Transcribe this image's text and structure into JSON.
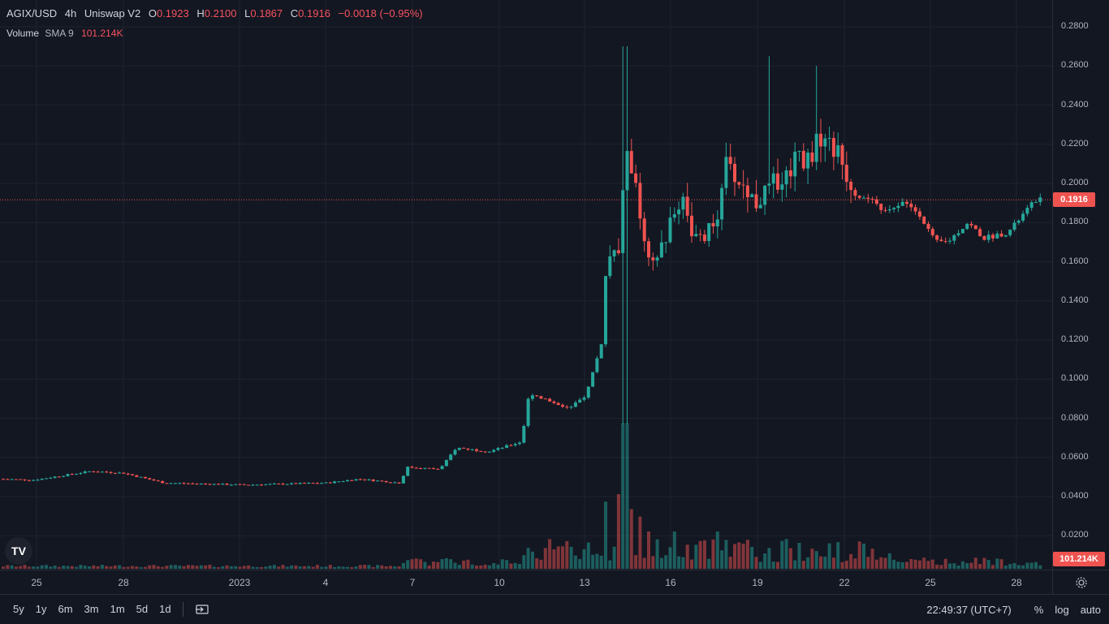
{
  "legend": {
    "symbol": "AGIX/USD",
    "interval": "4h",
    "exchange": "Uniswap V2",
    "o_label": "O",
    "o_value": "0.1923",
    "h_label": "H",
    "h_value": "0.2100",
    "l_label": "L",
    "l_value": "0.1867",
    "c_label": "C",
    "c_value": "0.1916",
    "change": "−0.0018 (−0.95%)"
  },
  "volume_legend": {
    "label": "Volume",
    "sma": "SMA 9",
    "value": "101.214K"
  },
  "price_tags": {
    "last_price": "0.1916",
    "volume": "101.214K"
  },
  "colors": {
    "up": "#26a69a",
    "down": "#ef5350",
    "background": "#131722"
  },
  "chart_data": {
    "type": "candlestick",
    "title": "",
    "ylim": [
      0.0,
      0.29
    ],
    "y_ticks": [
      "0.2800",
      "0.2600",
      "0.2400",
      "0.2200",
      "0.2000",
      "0.1800",
      "0.1600",
      "0.1400",
      "0.1200",
      "0.1000",
      "0.0800",
      "0.0600",
      "0.0400",
      "0.0200"
    ],
    "x_ticks": [
      "25",
      "28",
      "2023",
      "4",
      "7",
      "10",
      "13",
      "16",
      "19",
      "22",
      "25",
      "28"
    ],
    "last_close": 0.1916,
    "path_keypoints": [
      [
        0,
        0.049
      ],
      [
        40,
        0.0485
      ],
      [
        110,
        0.053
      ],
      [
        150,
        0.052
      ],
      [
        200,
        0.047
      ],
      [
        300,
        0.046
      ],
      [
        400,
        0.047
      ],
      [
        440,
        0.049
      ],
      [
        490,
        0.047
      ],
      [
        500,
        0.055
      ],
      [
        540,
        0.054
      ],
      [
        560,
        0.065
      ],
      [
        600,
        0.063
      ],
      [
        640,
        0.068
      ],
      [
        650,
        0.093
      ],
      [
        680,
        0.088
      ],
      [
        700,
        0.085
      ],
      [
        720,
        0.092
      ],
      [
        740,
        0.12
      ],
      [
        745,
        0.16
      ],
      [
        760,
        0.165
      ],
      [
        770,
        0.22
      ],
      [
        780,
        0.2
      ],
      [
        790,
        0.17
      ],
      [
        800,
        0.155
      ],
      [
        820,
        0.175
      ],
      [
        840,
        0.195
      ],
      [
        850,
        0.175
      ],
      [
        860,
        0.17
      ],
      [
        880,
        0.18
      ],
      [
        890,
        0.21
      ],
      [
        910,
        0.2
      ],
      [
        930,
        0.19
      ],
      [
        950,
        0.2
      ],
      [
        970,
        0.205
      ],
      [
        980,
        0.22
      ],
      [
        990,
        0.21
      ],
      [
        1010,
        0.225
      ],
      [
        1030,
        0.215
      ],
      [
        1050,
        0.195
      ],
      [
        1075,
        0.19
      ],
      [
        1090,
        0.185
      ],
      [
        1110,
        0.19
      ],
      [
        1130,
        0.185
      ],
      [
        1150,
        0.17
      ],
      [
        1165,
        0.17
      ],
      [
        1190,
        0.18
      ],
      [
        1210,
        0.172
      ],
      [
        1240,
        0.175
      ],
      [
        1260,
        0.185
      ],
      [
        1275,
        0.192
      ]
    ]
  },
  "volume_data": {
    "value": "101.214K",
    "spikes": [
      [
        745,
        0.36
      ],
      [
        760,
        0.4
      ],
      [
        768,
        0.78
      ],
      [
        775,
        0.32
      ],
      [
        785,
        0.28
      ],
      [
        795,
        0.2
      ],
      [
        830,
        0.2
      ],
      [
        880,
        0.2
      ]
    ]
  },
  "toolbar": {
    "ranges": [
      "5y",
      "1y",
      "6m",
      "3m",
      "1m",
      "5d",
      "1d"
    ],
    "time": "22:49:37 (UTC+7)",
    "percent": "%",
    "log": "log",
    "auto": "auto"
  }
}
